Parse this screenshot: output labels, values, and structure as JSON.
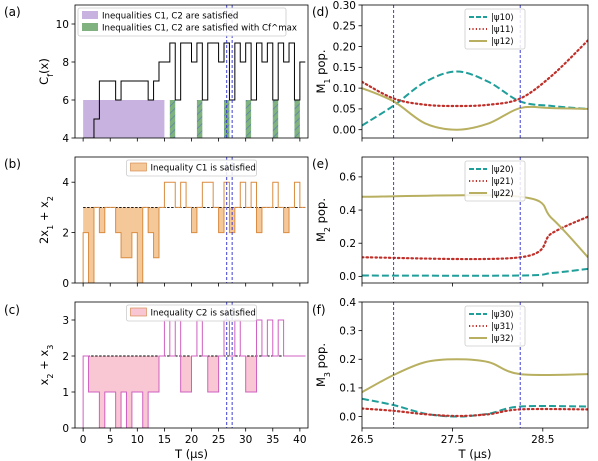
{
  "figure": {
    "shared_xlabel_left": "T (μs)",
    "shared_xlabel_right": "T (μs)"
  },
  "chart_data": [
    {
      "panel": "(a)",
      "type": "line",
      "ylabel": "C_f(x)",
      "ylim": [
        4,
        11
      ],
      "yticks": [
        4,
        6,
        8,
        10
      ],
      "xlim": [
        -1.5,
        41.5
      ],
      "xticks": [
        0,
        5,
        10,
        15,
        20,
        25,
        30,
        35,
        40
      ],
      "legend": {
        "placement": "top-left",
        "entries": [
          {
            "text": "Inequalities C1, C2 are satisfied",
            "color": "#c8b3e0"
          },
          {
            "text": "Inequalities C1, C2 are satisfied with Cf^max",
            "color": "#7fb27f"
          }
        ]
      },
      "steps": [
        [
          0,
          4
        ],
        [
          2,
          4
        ],
        [
          2,
          5
        ],
        [
          3,
          5
        ],
        [
          3,
          7
        ],
        [
          6,
          7
        ],
        [
          6,
          6
        ],
        [
          7,
          6
        ],
        [
          7,
          7
        ],
        [
          12,
          7
        ],
        [
          12,
          6
        ],
        [
          13,
          6
        ],
        [
          13,
          7
        ],
        [
          14,
          7
        ],
        [
          14,
          8
        ],
        [
          16,
          8
        ],
        [
          16,
          9
        ],
        [
          17,
          9
        ],
        [
          17,
          6
        ],
        [
          18,
          6
        ],
        [
          18,
          9
        ],
        [
          20,
          9
        ],
        [
          20,
          8
        ],
        [
          21,
          8
        ],
        [
          21,
          9
        ],
        [
          22,
          9
        ],
        [
          22,
          6
        ],
        [
          23,
          6
        ],
        [
          23,
          9
        ],
        [
          25,
          9
        ],
        [
          25,
          8
        ],
        [
          26,
          8
        ],
        [
          26,
          9
        ],
        [
          27,
          9
        ],
        [
          27,
          6
        ],
        [
          28,
          6
        ],
        [
          28,
          9
        ],
        [
          29,
          9
        ],
        [
          29,
          8
        ],
        [
          30,
          8
        ],
        [
          30,
          9
        ],
        [
          31,
          9
        ],
        [
          31,
          6
        ],
        [
          32,
          6
        ],
        [
          32,
          9
        ],
        [
          33,
          9
        ],
        [
          33,
          8
        ],
        [
          34,
          8
        ],
        [
          34,
          9
        ],
        [
          35,
          9
        ],
        [
          35,
          6
        ],
        [
          36,
          6
        ],
        [
          36,
          9
        ],
        [
          37,
          9
        ],
        [
          37,
          8
        ],
        [
          38,
          8
        ],
        [
          38,
          9
        ],
        [
          39,
          9
        ],
        [
          39,
          6
        ],
        [
          40,
          6
        ],
        [
          40,
          8
        ],
        [
          41,
          8
        ]
      ],
      "purple_region": {
        "x": [
          0,
          15
        ],
        "y": 6
      },
      "green_bars": [
        [
          16,
          17
        ],
        [
          21,
          22
        ],
        [
          26,
          27
        ],
        [
          30,
          31
        ],
        [
          35,
          36
        ],
        [
          39,
          40
        ]
      ],
      "vlines": [
        26.5,
        27.5
      ]
    },
    {
      "panel": "(b)",
      "type": "line",
      "ylabel": "2x1 + x2",
      "ylim": [
        0,
        5
      ],
      "yticks": [
        0,
        2,
        4
      ],
      "xlim": [
        -1.5,
        41.5
      ],
      "xticks": [
        0,
        5,
        10,
        15,
        20,
        25,
        30,
        35,
        40
      ],
      "threshold": 3,
      "fill_color": "#f5c89a",
      "line_color": "#d98c40",
      "legend": {
        "placement": "top-center",
        "entries": [
          {
            "text": "Inequality C1 is satisfied",
            "color": "#f5c89a"
          }
        ]
      },
      "steps": [
        [
          0,
          0
        ],
        [
          0,
          2
        ],
        [
          1,
          2
        ],
        [
          1,
          0
        ],
        [
          2,
          0
        ],
        [
          2,
          3
        ],
        [
          3,
          3
        ],
        [
          3,
          2
        ],
        [
          4,
          2
        ],
        [
          4,
          3
        ],
        [
          6,
          3
        ],
        [
          6,
          2
        ],
        [
          7,
          2
        ],
        [
          7,
          1
        ],
        [
          9,
          1
        ],
        [
          9,
          2
        ],
        [
          10,
          2
        ],
        [
          10,
          0
        ],
        [
          11,
          0
        ],
        [
          11,
          3
        ],
        [
          12,
          3
        ],
        [
          12,
          2
        ],
        [
          13,
          2
        ],
        [
          13,
          1
        ],
        [
          14,
          1
        ],
        [
          14,
          3
        ],
        [
          15,
          3
        ],
        [
          15,
          4
        ],
        [
          17,
          4
        ],
        [
          17,
          3
        ],
        [
          18,
          3
        ],
        [
          18,
          4
        ],
        [
          19,
          4
        ],
        [
          19,
          3
        ],
        [
          20,
          3
        ],
        [
          20,
          2
        ],
        [
          21,
          2
        ],
        [
          21,
          3
        ],
        [
          22,
          3
        ],
        [
          22,
          4
        ],
        [
          24,
          4
        ],
        [
          24,
          3
        ],
        [
          25,
          3
        ],
        [
          25,
          2
        ],
        [
          26,
          2
        ],
        [
          26,
          4
        ],
        [
          27,
          4
        ],
        [
          27,
          2
        ],
        [
          28,
          2
        ],
        [
          28,
          3
        ],
        [
          29,
          3
        ],
        [
          29,
          4
        ],
        [
          30,
          4
        ],
        [
          30,
          3
        ],
        [
          31,
          3
        ],
        [
          31,
          4
        ],
        [
          32,
          4
        ],
        [
          32,
          2
        ],
        [
          33,
          2
        ],
        [
          33,
          3
        ],
        [
          35,
          3
        ],
        [
          35,
          4
        ],
        [
          36,
          4
        ],
        [
          36,
          3
        ],
        [
          37,
          3
        ],
        [
          37,
          2
        ],
        [
          38,
          2
        ],
        [
          38,
          3
        ],
        [
          39,
          3
        ],
        [
          39,
          4
        ],
        [
          40,
          4
        ],
        [
          40,
          3
        ],
        [
          41,
          3
        ]
      ],
      "vlines": [
        26.5,
        27.5
      ]
    },
    {
      "panel": "(c)",
      "type": "line",
      "ylabel": "x2 + x3",
      "ylim": [
        0,
        3.5
      ],
      "yticks": [
        0,
        1,
        2,
        3
      ],
      "xlim": [
        -1.5,
        41.5
      ],
      "xticks": [
        0,
        5,
        10,
        15,
        20,
        25,
        30,
        35,
        40
      ],
      "xlabel": "T (μs)",
      "threshold": 2,
      "fill_color": "#f9c6d3",
      "line_color": "#d060c0",
      "legend": {
        "placement": "top-center",
        "entries": [
          {
            "text": "Inequality C2 is satisfied",
            "color": "#f9c6d3"
          }
        ]
      },
      "steps": [
        [
          0,
          0
        ],
        [
          0,
          2
        ],
        [
          1,
          2
        ],
        [
          1,
          1
        ],
        [
          3,
          1
        ],
        [
          3,
          0
        ],
        [
          4,
          0
        ],
        [
          4,
          1
        ],
        [
          6,
          1
        ],
        [
          6,
          0
        ],
        [
          7,
          0
        ],
        [
          7,
          1
        ],
        [
          8,
          1
        ],
        [
          8,
          0
        ],
        [
          9,
          0
        ],
        [
          9,
          1
        ],
        [
          11,
          1
        ],
        [
          11,
          0
        ],
        [
          12,
          0
        ],
        [
          12,
          1
        ],
        [
          14,
          1
        ],
        [
          14,
          2
        ],
        [
          15,
          2
        ],
        [
          15,
          3
        ],
        [
          16,
          3
        ],
        [
          16,
          2
        ],
        [
          17,
          2
        ],
        [
          17,
          3
        ],
        [
          18,
          3
        ],
        [
          18,
          1
        ],
        [
          20,
          1
        ],
        [
          20,
          2
        ],
        [
          21,
          2
        ],
        [
          21,
          3
        ],
        [
          22,
          3
        ],
        [
          22,
          2
        ],
        [
          23,
          2
        ],
        [
          23,
          1
        ],
        [
          25,
          1
        ],
        [
          25,
          2
        ],
        [
          26,
          2
        ],
        [
          26,
          3
        ],
        [
          27,
          3
        ],
        [
          27,
          2
        ],
        [
          28,
          2
        ],
        [
          28,
          3
        ],
        [
          29,
          3
        ],
        [
          29,
          2
        ],
        [
          30,
          2
        ],
        [
          30,
          1
        ],
        [
          32,
          1
        ],
        [
          32,
          3
        ],
        [
          33,
          3
        ],
        [
          33,
          2
        ],
        [
          34,
          2
        ],
        [
          34,
          3
        ],
        [
          35,
          3
        ],
        [
          35,
          2
        ],
        [
          36,
          2
        ],
        [
          36,
          3
        ],
        [
          37,
          3
        ],
        [
          37,
          2
        ],
        [
          41,
          2
        ]
      ],
      "vlines": [
        26.5,
        27.5
      ]
    },
    {
      "panel": "(d)",
      "type": "line",
      "ylabel": "M1 pop.",
      "xlim": [
        26.5,
        29.0
      ],
      "ylim": [
        -0.02,
        0.3
      ],
      "yticks": [
        0.0,
        0.05,
        0.1,
        0.15,
        0.2,
        0.25,
        0.3
      ],
      "ytick_labels": [
        "0.00",
        "0.05",
        "0.10",
        "0.15",
        "0.20",
        "0.25",
        "0.30"
      ],
      "xticks": [
        26.5,
        27.5,
        28.5
      ],
      "vlines": [
        26.85,
        28.25
      ],
      "series": [
        {
          "name": "|ψ10⟩",
          "style": "dashed",
          "color": "#1f9e9a",
          "x": [
            26.5,
            26.85,
            27.2,
            27.55,
            27.9,
            28.25,
            28.6,
            29.0
          ],
          "y": [
            0.01,
            0.058,
            0.115,
            0.14,
            0.115,
            0.068,
            0.057,
            0.05
          ]
        },
        {
          "name": "|ψ11⟩",
          "style": "dotted",
          "color": "#c0302a",
          "x": [
            26.5,
            26.85,
            27.2,
            27.55,
            27.9,
            28.25,
            28.6,
            29.0
          ],
          "y": [
            0.115,
            0.075,
            0.06,
            0.057,
            0.06,
            0.075,
            0.13,
            0.215
          ]
        },
        {
          "name": "|ψ12⟩",
          "style": "solid",
          "color": "#b8b060",
          "x": [
            26.5,
            26.85,
            27.2,
            27.55,
            27.9,
            28.25,
            28.6,
            29.0
          ],
          "y": [
            0.1,
            0.068,
            0.015,
            0.0,
            0.015,
            0.052,
            0.052,
            0.05
          ]
        }
      ]
    },
    {
      "panel": "(e)",
      "type": "line",
      "ylabel": "M2 pop.",
      "xlim": [
        26.5,
        29.0
      ],
      "ylim": [
        -0.04,
        0.72
      ],
      "yticks": [
        0.0,
        0.2,
        0.4,
        0.6
      ],
      "ytick_labels": [
        "0.0",
        "0.2",
        "0.4",
        "0.6"
      ],
      "xticks": [
        26.5,
        27.5,
        28.5
      ],
      "vlines": [
        26.85,
        28.25
      ],
      "series": [
        {
          "name": "|ψ20⟩",
          "style": "dashed",
          "color": "#1f9e9a",
          "x": [
            26.5,
            28.25,
            28.6,
            29.0
          ],
          "y": [
            0.005,
            0.005,
            0.02,
            0.045
          ]
        },
        {
          "name": "|ψ21⟩",
          "style": "dotted",
          "color": "#c0302a",
          "x": [
            26.5,
            28.25,
            28.6,
            29.0
          ],
          "y": [
            0.115,
            0.115,
            0.26,
            0.36
          ]
        },
        {
          "name": "|ψ22⟩",
          "style": "solid",
          "color": "#b8b060",
          "x": [
            26.5,
            28.25,
            28.6,
            29.0
          ],
          "y": [
            0.48,
            0.48,
            0.35,
            0.115
          ]
        }
      ]
    },
    {
      "panel": "(f)",
      "type": "line",
      "ylabel": "M3 pop.",
      "xlim": [
        26.5,
        29.0
      ],
      "ylim": [
        -0.04,
        0.4
      ],
      "yticks": [
        0.0,
        0.1,
        0.2,
        0.3,
        0.4
      ],
      "ytick_labels": [
        "0.0",
        "0.1",
        "0.2",
        "0.3",
        "0.4"
      ],
      "xticks": [
        26.5,
        27.5,
        28.5
      ],
      "xtick_labels": [
        "26.5",
        "27.5",
        "28.5"
      ],
      "xlabel": "T (μs)",
      "vlines": [
        26.85,
        28.25
      ],
      "series": [
        {
          "name": "|ψ30⟩",
          "style": "dashed",
          "color": "#1f9e9a",
          "x": [
            26.5,
            26.85,
            27.2,
            27.55,
            27.9,
            28.25,
            29.0
          ],
          "y": [
            0.062,
            0.04,
            0.01,
            0.0,
            0.01,
            0.035,
            0.035
          ]
        },
        {
          "name": "|ψ31⟩",
          "style": "dotted",
          "color": "#c0302a",
          "x": [
            26.5,
            26.85,
            27.2,
            27.55,
            27.9,
            28.25,
            29.0
          ],
          "y": [
            0.028,
            0.02,
            0.008,
            0.002,
            0.008,
            0.025,
            0.025
          ]
        },
        {
          "name": "|ψ32⟩",
          "style": "solid",
          "color": "#b8b060",
          "x": [
            26.5,
            26.85,
            27.2,
            27.55,
            27.9,
            28.25,
            29.0
          ],
          "y": [
            0.085,
            0.145,
            0.19,
            0.2,
            0.19,
            0.148,
            0.148
          ]
        }
      ]
    }
  ]
}
